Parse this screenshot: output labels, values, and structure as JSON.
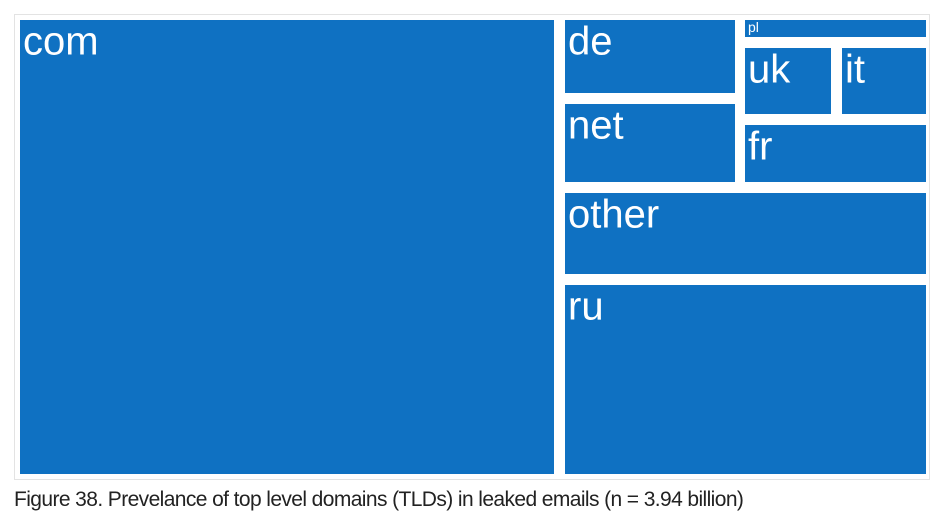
{
  "colors": {
    "tile": "#0f71c2",
    "label": "#ffffff",
    "background": "#ffffff"
  },
  "caption": "Figure 38. Prevelance of top level domains (TLDs) in leaked emails (n = 3.94 billion)",
  "chart_data": {
    "type": "treemap",
    "title": "",
    "tiles": [
      {
        "label": "com"
      },
      {
        "label": "de"
      },
      {
        "label": "net"
      },
      {
        "label": "pl"
      },
      {
        "label": "uk"
      },
      {
        "label": "it"
      },
      {
        "label": "fr"
      },
      {
        "label": "other"
      },
      {
        "label": "ru"
      }
    ]
  }
}
